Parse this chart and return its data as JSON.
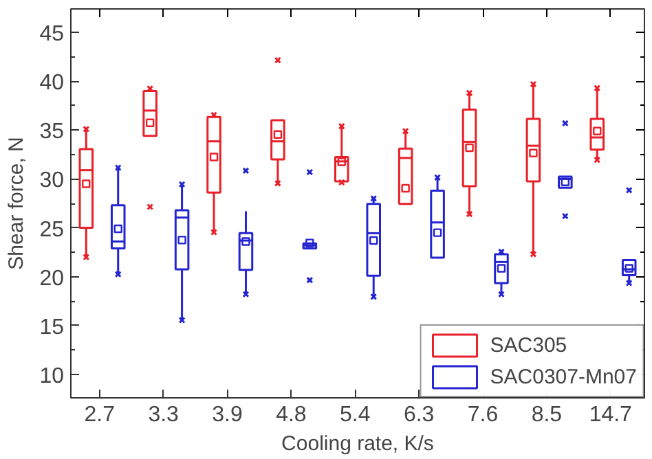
{
  "chart_data": {
    "type": "box",
    "xlabel": "Cooling rate, K/s",
    "ylabel": "Shear force, N",
    "categories": [
      "2.7",
      "3.3",
      "3.9",
      "4.8",
      "5.4",
      "6.3",
      "7.6",
      "8.5",
      "14.7"
    ],
    "ylim": [
      7.6,
      47.4
    ],
    "yticks": [
      10,
      {
        "value": 12.5,
        "label": null
      },
      15,
      {
        "value": 17.5,
        "label": null
      },
      20,
      {
        "value": 22.5,
        "label": null
      },
      25,
      {
        "value": 27.5,
        "label": null
      },
      30,
      {
        "value": 32.5,
        "label": null
      },
      35,
      {
        "value": 37.5,
        "label": null
      },
      40,
      {
        "value": 42.5,
        "label": null
      },
      45
    ],
    "grid": false,
    "legend": "bottom right",
    "marker": "square",
    "series": [
      {
        "name": "SAC305",
        "color": "#e8202a",
        "boxes": [
          {
            "low": 22,
            "q1": 25,
            "median": 30.9,
            "q3": 33.05,
            "high": 35.1,
            "mean": 29.5,
            "outliers": [
              22,
              35.1
            ]
          },
          {
            "low": 34.4,
            "q1": 34.4,
            "median": 37,
            "q3": 39,
            "high": 39.25,
            "mean": 35.75,
            "outliers": [
              27.15,
              39.25
            ]
          },
          {
            "low": 24.55,
            "q1": 28.6,
            "median": 33.85,
            "q3": 36.35,
            "high": 36.55,
            "mean": 32.25,
            "outliers": [
              24.55,
              36.55
            ]
          },
          {
            "low": 29.55,
            "q1": 32,
            "median": 33.85,
            "q3": 36,
            "high": 36,
            "mean": 34.55,
            "outliers": [
              29.55,
              42.15
            ]
          },
          {
            "low": 29.65,
            "q1": 29.75,
            "median": 31.8,
            "q3": 32.25,
            "high": 35.4,
            "mean": 31.75,
            "outliers": [
              29.65,
              35.4
            ]
          },
          {
            "low": 27.45,
            "q1": 27.45,
            "median": 32.15,
            "q3": 33.1,
            "high": 34.9,
            "mean": 29.05,
            "outliers": [
              34.9
            ]
          },
          {
            "low": 26.4,
            "q1": 29.25,
            "median": 33.8,
            "q3": 37.1,
            "high": 38.8,
            "mean": 33.2,
            "outliers": [
              26.4,
              38.8
            ]
          },
          {
            "low": 22.3,
            "q1": 29.75,
            "median": 33.4,
            "q3": 36.15,
            "high": 39.7,
            "mean": 32.65,
            "outliers": [
              22.3,
              39.7
            ]
          },
          {
            "low": 31.95,
            "q1": 33,
            "median": 34.25,
            "q3": 36.15,
            "high": 39.3,
            "mean": 34.9,
            "outliers": [
              31.95,
              39.3
            ]
          }
        ]
      },
      {
        "name": "SAC0307-Mn07",
        "color": "#2424d0",
        "boxes": [
          {
            "low": 20.25,
            "q1": 22.9,
            "median": 23.6,
            "q3": 27.3,
            "high": 31.15,
            "mean": 24.9,
            "outliers": [
              20.25,
              31.15
            ]
          },
          {
            "low": 15.55,
            "q1": 20.75,
            "median": 26.05,
            "q3": 26.8,
            "high": 29.45,
            "mean": 23.75,
            "outliers": [
              15.55,
              29.45
            ]
          },
          {
            "low": 18.2,
            "q1": 20.7,
            "median": 23.7,
            "q3": 24.45,
            "high": 26.7,
            "mean": 23.6,
            "outliers": [
              18.2,
              30.85
            ]
          },
          {
            "low": 22.9,
            "q1": 22.9,
            "median": 23.2,
            "q3": 23.4,
            "high": 23.4,
            "mean": 23.45,
            "outliers": [
              19.65,
              30.7
            ]
          },
          {
            "low": 17.95,
            "q1": 20.1,
            "median": 24.45,
            "q3": 27.45,
            "high": 28,
            "mean": 23.7,
            "outliers": [
              17.95,
              28
            ]
          },
          {
            "low": null,
            "q1": 21.95,
            "median": 25.55,
            "q3": 28.8,
            "high": 30.15,
            "mean": 24.5,
            "outliers": [
              30.15
            ]
          },
          {
            "low": 18.2,
            "q1": 19.35,
            "median": 21.5,
            "q3": 22.3,
            "high": 22.55,
            "mean": 20.85,
            "outliers": [
              18.2,
              22.55
            ]
          },
          {
            "low": 29.1,
            "q1": 29.1,
            "median": 30,
            "q3": 30.25,
            "high": 30.25,
            "mean": 29.7,
            "outliers": [
              26.2,
              35.7
            ]
          },
          {
            "low": 19.35,
            "q1": 20.15,
            "median": 20.75,
            "q3": 21.7,
            "high": 21.7,
            "mean": 20.85,
            "outliers": [
              19.35,
              28.85
            ]
          }
        ]
      }
    ]
  }
}
